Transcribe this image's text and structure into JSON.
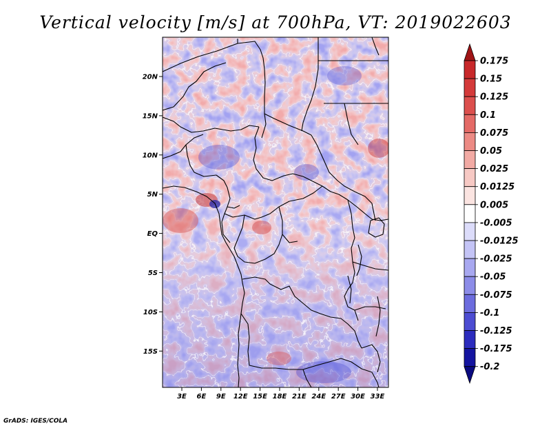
{
  "chart_data": {
    "type": "heatmap",
    "title": "Vertical velocity [m/s] at 700hPa, VT: 2019022603",
    "x_ticks": [
      "3E",
      "6E",
      "9E",
      "12E",
      "15E",
      "18E",
      "21E",
      "24E",
      "27E",
      "30E",
      "33E"
    ],
    "y_ticks": [
      "20N",
      "15N",
      "10N",
      "5N",
      "EQ",
      "5S",
      "10S",
      "15S"
    ],
    "colorbar": {
      "levels": [
        "0.175",
        "0.15",
        "0.125",
        "0.1",
        "0.075",
        "0.05",
        "0.025",
        "0.0125",
        "0.005",
        "-0.005",
        "-0.0125",
        "-0.025",
        "-0.05",
        "-0.075",
        "-0.1",
        "-0.125",
        "-0.175",
        "-0.2"
      ],
      "colors": [
        "#a01416",
        "#c8282a",
        "#d43a3a",
        "#dc4f4d",
        "#e46a66",
        "#ec8a84",
        "#f2aaa4",
        "#f7c9c4",
        "#fbe4e1",
        "#ffffff",
        "#dcdcfa",
        "#c4c4f6",
        "#a8a8f0",
        "#8c8ce8",
        "#6c6cde",
        "#4c4cd2",
        "#2c2cbe",
        "#1414a0",
        "#0a0a80"
      ]
    },
    "credit": "GrADS: IGES/COLA"
  }
}
